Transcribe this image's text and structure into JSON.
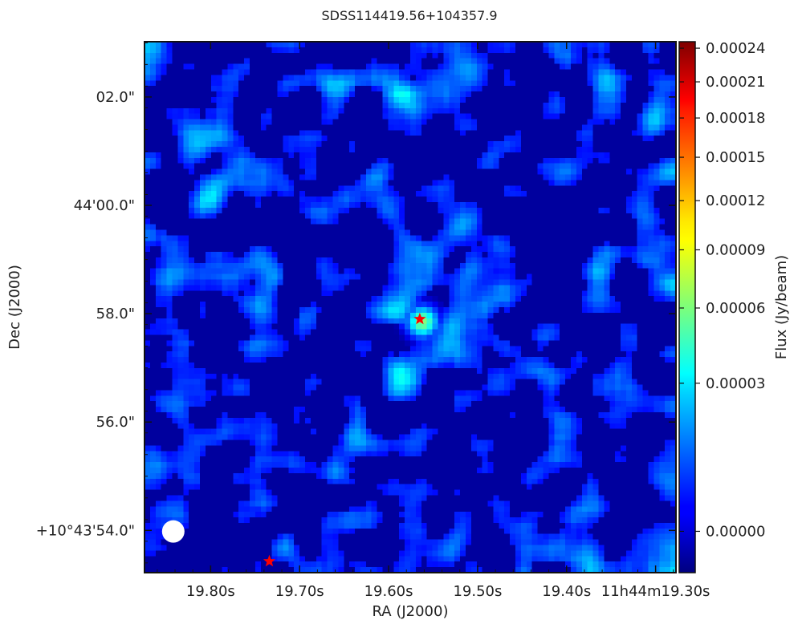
{
  "chart_data": {
    "type": "heatmap",
    "title": "SDSS114419.56+104357.9",
    "xlabel": "RA (J2000)",
    "ylabel": "Dec (J2000)",
    "colorbar_label": "Flux (Jy/beam)",
    "colormap": "jet",
    "x_ticks": [
      {
        "label": "19.80s",
        "ra_s": 19.8
      },
      {
        "label": "19.70s",
        "ra_s": 19.7
      },
      {
        "label": "19.60s",
        "ra_s": 19.6
      },
      {
        "label": "19.50s",
        "ra_s": 19.5
      },
      {
        "label": "19.40s",
        "ra_s": 19.4
      },
      {
        "label": "11h44m19.30s",
        "ra_s": 19.3
      }
    ],
    "y_ticks": [
      {
        "label": "02.0\"",
        "dec_arcsec": 62.0
      },
      {
        "label": "44'00.0\"",
        "dec_arcsec": 60.0
      },
      {
        "label": "58.0\"",
        "dec_arcsec": 58.0
      },
      {
        "label": "56.0\"",
        "dec_arcsec": 56.0
      },
      {
        "label": "+10°43'54.0\"",
        "dec_arcsec": 54.0
      }
    ],
    "x_range_ra_s": [
      19.8743,
      19.2771
    ],
    "y_range_dec_arcsec": [
      53.22,
      63.02
    ],
    "colorbar_ticks": [
      {
        "label": "0.00024",
        "value": 0.00024
      },
      {
        "label": "0.00021",
        "value": 0.00021
      },
      {
        "label": "0.00018",
        "value": 0.00018
      },
      {
        "label": "0.00015",
        "value": 0.00015
      },
      {
        "label": "0.00012",
        "value": 0.00012
      },
      {
        "label": "0.00009",
        "value": 9e-05
      },
      {
        "label": "0.00006",
        "value": 6e-05
      },
      {
        "label": "0.00003",
        "value": 3e-05
      },
      {
        "label": "0.00000",
        "value": 0.0
      }
    ],
    "colorbar_range": [
      -1.5e-06,
      0.000246
    ],
    "colorbar_scale": "sqrt",
    "markers": [
      {
        "type": "star",
        "color": "#ff0000",
        "ra_s": 19.565,
        "dec_arcsec": 57.9
      },
      {
        "type": "star",
        "color": "#ff0000",
        "ra_s": 19.734,
        "dec_arcsec": 53.43
      }
    ],
    "beam": {
      "color": "#ffffff",
      "ra_s": 19.842,
      "dec_arcsec": 53.98
    },
    "peak": {
      "ra_s": 19.565,
      "dec_arcsec": 57.9,
      "flux": 6.2e-05
    },
    "colors": {
      "background": "#000080",
      "marker": "#ff0000"
    }
  }
}
